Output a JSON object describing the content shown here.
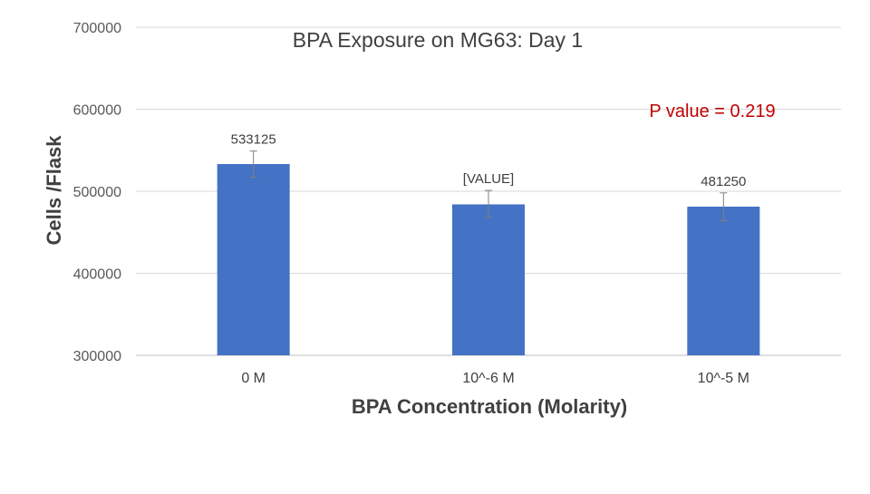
{
  "chart_data": {
    "type": "bar",
    "title": "BPA Exposure on MG63: Day 1",
    "xlabel": "BPA Concentration (Molarity)",
    "ylabel": "Cells /Flask",
    "annotation": "P value = 0.219",
    "categories": [
      "0 M",
      "10^-6 M",
      "10^-5 M"
    ],
    "values": [
      533125,
      484000,
      481250
    ],
    "data_labels": [
      "533125",
      "[VALUE]",
      "481250"
    ],
    "error_upper": [
      549000,
      501000,
      498000
    ],
    "error_lower": [
      517000,
      468000,
      464000
    ],
    "ylim": [
      300000,
      700000
    ],
    "yticks": [
      "700000",
      "600000",
      "500000",
      "400000",
      "300000"
    ],
    "ytick_values": [
      700000,
      600000,
      500000,
      400000,
      300000
    ],
    "grid": true,
    "legend": "none",
    "bar_color": "#4472c4",
    "error_color": "#7f7f7f",
    "annotation_color": "#c00000"
  }
}
